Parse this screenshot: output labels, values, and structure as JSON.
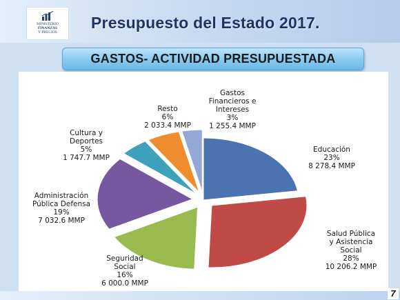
{
  "header": {
    "logo_text": [
      "MINISTERIO",
      "FINANZAS",
      "Y PRECIOS"
    ],
    "title": "Presupuesto del Estado 2017.",
    "subtitle": "GASTOS- ACTIVIDAD PRESUPUESTADA"
  },
  "page_number": "7",
  "chart_data": {
    "type": "pie",
    "unit": "MMP",
    "slices": [
      {
        "label": [
          "Educación"
        ],
        "percent": "23%",
        "value": 8278.4,
        "value_label": "8 278.4 MMP",
        "color": "#4a73b0",
        "explode": 0
      },
      {
        "label": [
          "Salud Pública",
          "y Asistencia",
          "Social"
        ],
        "percent": "28%",
        "value": 10206.2,
        "value_label": "10 206.2 MMP",
        "color": "#c04a45",
        "explode": 1
      },
      {
        "label": [
          "Seguridad",
          "Social"
        ],
        "percent": "16%",
        "value": 6000.0,
        "value_label": "6 000.0 MMP",
        "color": "#98ba4f",
        "explode": 1
      },
      {
        "label": [
          "Administración",
          "Pública Defensa"
        ],
        "percent": "19%",
        "value": 7032.6,
        "value_label": "7 032.6 MMP",
        "color": "#7658a0",
        "explode": 1
      },
      {
        "label": [
          "Cultura y",
          "Deportes"
        ],
        "percent": "5%",
        "value": 1747.7,
        "value_label": "1 747.7 MMP",
        "color": "#3da0bd",
        "explode": 1
      },
      {
        "label": [
          "Resto"
        ],
        "percent": "6%",
        "value": 2033.4,
        "value_label": "2 033.4 MMP",
        "color": "#ef8c2e",
        "explode": 1
      },
      {
        "label": [
          "Gastos",
          "Financieros e",
          "Intereses"
        ],
        "percent": "3%",
        "value": 1255.4,
        "value_label": "1 255.4 MMP",
        "color": "#93a8d6",
        "explode": 1
      }
    ]
  }
}
